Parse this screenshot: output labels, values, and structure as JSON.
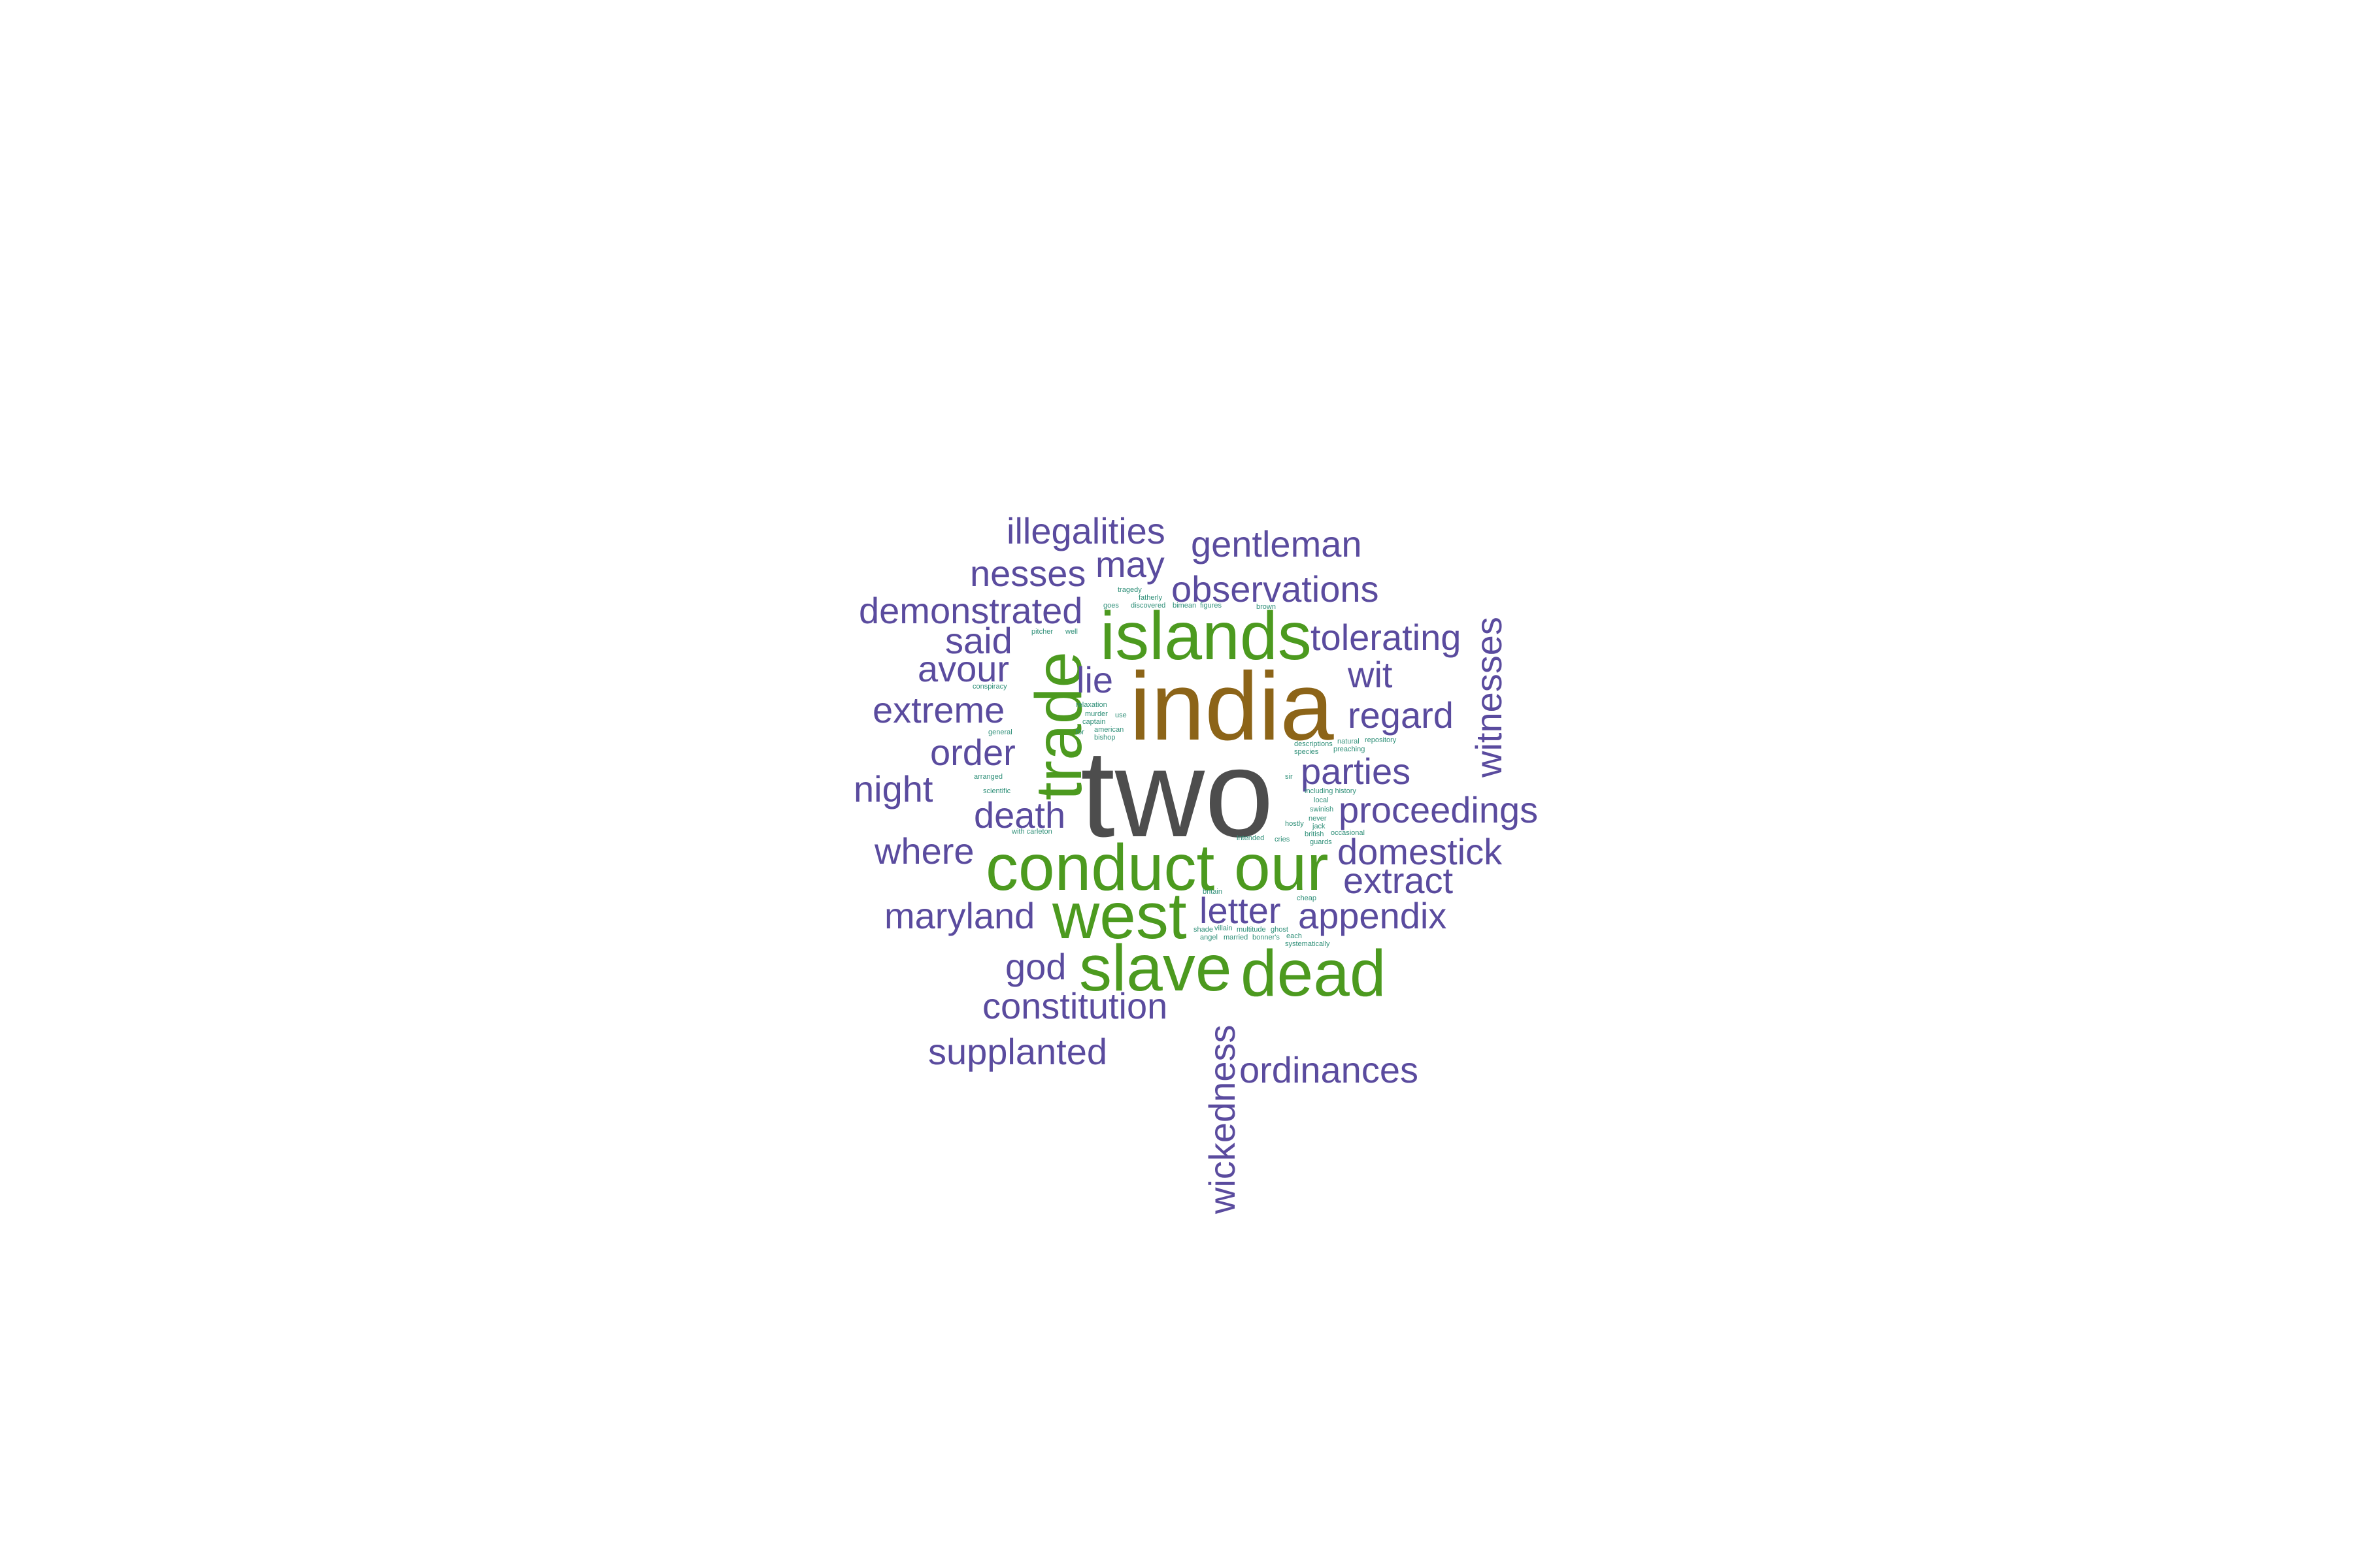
{
  "colors": {
    "top": "#4d4d4d",
    "second": "#8c6418",
    "third": "#4c9a1f",
    "fourth": "#5a4b9e",
    "small": "#2f8f78",
    "background": "#ffffff"
  },
  "words": {
    "two": "two",
    "india": "india",
    "islands": "islands",
    "trade": "trade",
    "conduct": "conduct",
    "our": "our",
    "west": "west",
    "slave": "slave",
    "dead": "dead",
    "illegalities": "illegalities",
    "gentleman": "gentleman",
    "may": "may",
    "nesses": "nesses",
    "observations": "observations",
    "demonstrated": "demonstrated",
    "tolerating": "tolerating",
    "said": "said",
    "avour": "avour",
    "wit": "wit",
    "lie": "lie",
    "witnesses": "witnesses",
    "extreme": "extreme",
    "regard": "regard",
    "order": "order",
    "parties": "parties",
    "night": "night",
    "proceedings": "proceedings",
    "death": "death",
    "where": "where",
    "domestick": "domestick",
    "extract": "extract",
    "maryland": "maryland",
    "letter": "letter",
    "appendix": "appendix",
    "god": "god",
    "constitution": "constitution",
    "supplanted": "supplanted",
    "ordinances": "ordinances",
    "wickedness": "wickedness",
    "tragedy": "tragedy",
    "fatherly": "fatherly",
    "discovered": "discovered",
    "bimean": "bimean",
    "figures": "figures",
    "goes": "goes",
    "brown": "brown",
    "pitcher": "pitcher",
    "well": "well",
    "conspiracy": "conspiracy",
    "relaxation": "relaxation",
    "murder": "murder",
    "captain": "captain",
    "american": "american",
    "bishop": "bishop",
    "general": "general",
    "arranged": "arranged",
    "scientific": "scientific",
    "with_carleton": "with carleton",
    "intended": "intended",
    "cries": "cries",
    "descriptions": "descriptions",
    "natural": "natural",
    "repository": "repository",
    "species": "species",
    "preaching": "preaching",
    "prison": "prison",
    "including_history": "including history",
    "local": "local",
    "swinish": "swinish",
    "never": "never",
    "hostly": "hostly",
    "jack": "jack",
    "british": "british",
    "occasional": "occasional",
    "guards": "guards",
    "britain": "britain",
    "cheap": "cheap",
    "shade": "shade",
    "villain": "villain",
    "multitude": "multitude",
    "ghost": "ghost",
    "each": "each",
    "angel": "angel",
    "married": "married",
    "bonners": "bonner's",
    "systematically": "systematically",
    "sir": "sir",
    "for": "for",
    "use": "use"
  }
}
